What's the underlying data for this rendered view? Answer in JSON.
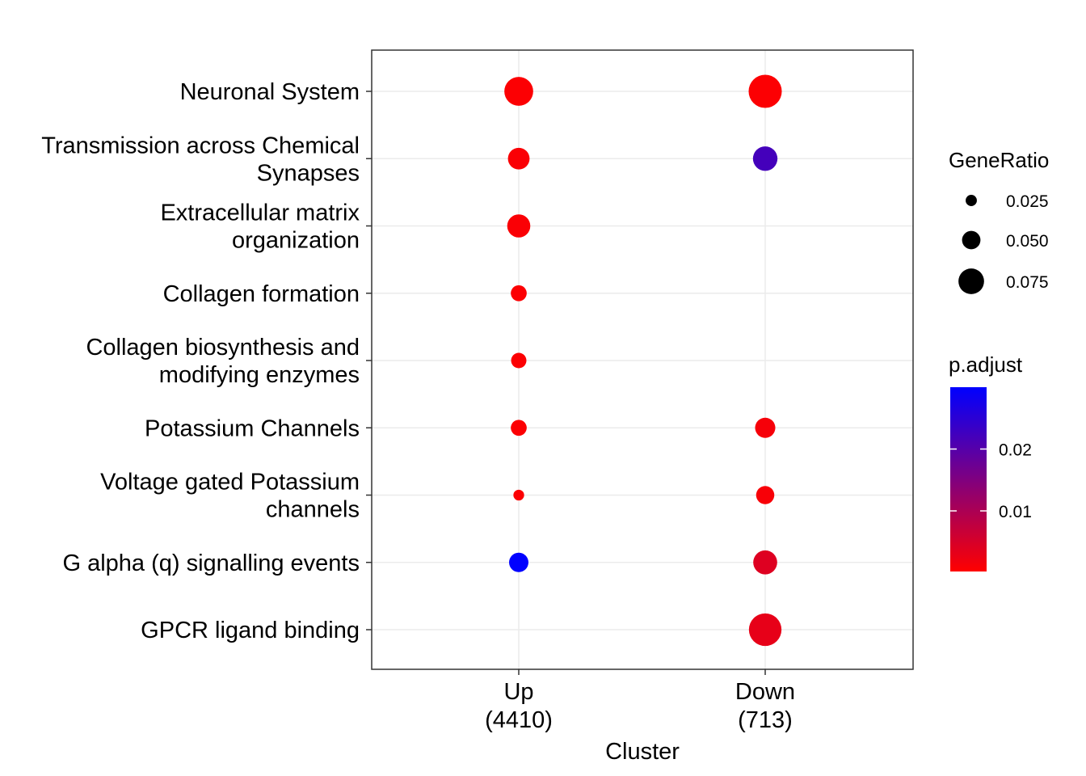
{
  "chart_data": {
    "type": "scatter",
    "subtype": "dot-plot",
    "xlabel": "Cluster",
    "x_categories": [
      {
        "name": "Up",
        "count": "(4410)"
      },
      {
        "name": "Down",
        "count": "(713)"
      }
    ],
    "y_categories": [
      [
        "Neuronal System"
      ],
      [
        "Transmission across Chemical",
        "Synapses"
      ],
      [
        "Extracellular matrix",
        "organization"
      ],
      [
        "Collagen formation"
      ],
      [
        "Collagen biosynthesis and",
        "modifying enzymes"
      ],
      [
        "Potassium Channels"
      ],
      [
        "Voltage gated Potassium",
        "channels"
      ],
      [
        "G alpha (q) signalling events"
      ],
      [
        "GPCR ligand binding"
      ]
    ],
    "points": [
      {
        "x": 0,
        "y": 0,
        "gene_ratio": 0.075,
        "p_adjust": 0.0005
      },
      {
        "x": 1,
        "y": 0,
        "gene_ratio": 0.09,
        "p_adjust": 0.0005
      },
      {
        "x": 0,
        "y": 1,
        "gene_ratio": 0.05,
        "p_adjust": 0.0008
      },
      {
        "x": 1,
        "y": 1,
        "gene_ratio": 0.06,
        "p_adjust": 0.022
      },
      {
        "x": 0,
        "y": 2,
        "gene_ratio": 0.055,
        "p_adjust": 0.0008
      },
      {
        "x": 0,
        "y": 3,
        "gene_ratio": 0.03,
        "p_adjust": 0.0005
      },
      {
        "x": 0,
        "y": 4,
        "gene_ratio": 0.028,
        "p_adjust": 0.0005
      },
      {
        "x": 0,
        "y": 5,
        "gene_ratio": 0.03,
        "p_adjust": 0.0005
      },
      {
        "x": 1,
        "y": 5,
        "gene_ratio": 0.045,
        "p_adjust": 0.0012
      },
      {
        "x": 0,
        "y": 6,
        "gene_ratio": 0.012,
        "p_adjust": 0.0005
      },
      {
        "x": 1,
        "y": 6,
        "gene_ratio": 0.038,
        "p_adjust": 0.001
      },
      {
        "x": 0,
        "y": 7,
        "gene_ratio": 0.042,
        "p_adjust": 0.03
      },
      {
        "x": 1,
        "y": 7,
        "gene_ratio": 0.058,
        "p_adjust": 0.004
      },
      {
        "x": 1,
        "y": 8,
        "gene_ratio": 0.088,
        "p_adjust": 0.003
      }
    ],
    "size_legend": {
      "title": "GeneRatio",
      "values": [
        0.025,
        0.05,
        0.075
      ],
      "labels": [
        "0.025",
        "0.050",
        "0.075"
      ]
    },
    "color_legend": {
      "title": "p.adjust",
      "range": [
        0.0002,
        0.03
      ],
      "ticks": [
        0.01,
        0.02
      ],
      "tick_labels": [
        "0.01",
        "0.02"
      ],
      "low_color": "#ff0000",
      "high_color": "#0000ff"
    },
    "grid": true,
    "legend_position": "right"
  }
}
